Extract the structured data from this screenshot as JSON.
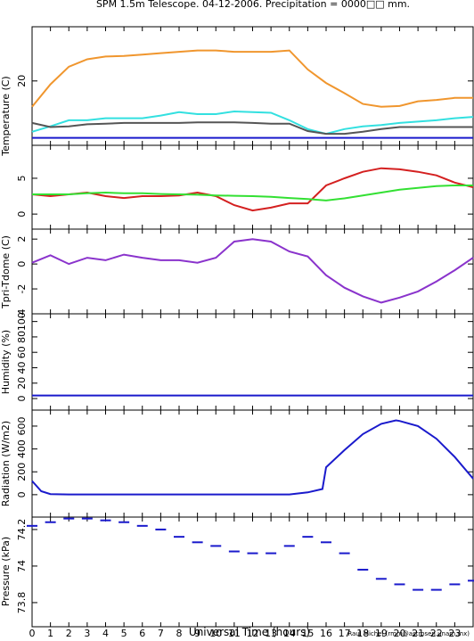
{
  "chart_data": [
    {
      "type": "line",
      "title": "SPM 1.5m Telescope. 04-12-2006. Precipitation = 0000□□ mm.",
      "ylabel": "Temperature (C)",
      "x": [
        0,
        1,
        2,
        3,
        4,
        5,
        6,
        7,
        8,
        9,
        10,
        11,
        12,
        13,
        14,
        15,
        16,
        17,
        18,
        19,
        20,
        21,
        22,
        23,
        24
      ],
      "xlim": [
        0,
        24
      ],
      "xticks": [
        0,
        1,
        2,
        3,
        4,
        5,
        6,
        7,
        8,
        9,
        10,
        11,
        12,
        13,
        14,
        15,
        16,
        17,
        18,
        19,
        20,
        21,
        22,
        23
      ],
      "ylim": [
        10.5,
        28
      ],
      "yticks": [
        20
      ],
      "series": [
        {
          "color": "#f0962e",
          "values": [
            16.2,
            19.5,
            22.1,
            23.2,
            23.6,
            23.7,
            23.9,
            24.1,
            24.3,
            24.5,
            24.5,
            24.3,
            24.3,
            24.3,
            24.5,
            21.7,
            19.7,
            18.2,
            16.6,
            16.2,
            16.3,
            17,
            17.2,
            17.5,
            17.5
          ]
        },
        {
          "color": "#33e0e0",
          "values": [
            12.5,
            13.3,
            14.2,
            14.2,
            14.5,
            14.5,
            14.5,
            14.9,
            15.4,
            15.1,
            15.1,
            15.5,
            15.4,
            15.3,
            14.2,
            12.9,
            12.2,
            12.9,
            13.3,
            13.5,
            13.8,
            14,
            14.2,
            14.5,
            14.7
          ]
        },
        {
          "color": "#555555",
          "values": [
            13.8,
            13.2,
            13.3,
            13.6,
            13.7,
            13.8,
            13.8,
            13.8,
            13.8,
            13.9,
            13.9,
            13.9,
            13.8,
            13.7,
            13.7,
            12.6,
            12.2,
            12.2,
            12.5,
            12.9,
            13.2,
            13.2,
            13.2,
            13.2,
            13.2
          ]
        },
        {
          "color": "#1a1acc",
          "values": [
            11.6,
            11.6,
            11.6,
            11.6,
            11.6,
            11.6,
            11.6,
            11.6,
            11.6,
            11.6,
            11.6,
            11.6,
            11.6,
            11.6,
            11.6,
            11.6,
            11.6,
            11.6,
            11.6,
            11.6,
            11.6,
            11.6,
            11.6,
            11.6,
            11.6
          ]
        }
      ]
    },
    {
      "type": "line",
      "x": [
        0,
        1,
        2,
        3,
        4,
        5,
        6,
        7,
        8,
        9,
        10,
        11,
        12,
        13,
        14,
        15,
        16,
        17,
        18,
        19,
        20,
        21,
        22,
        23,
        24
      ],
      "xlim": [
        0,
        24
      ],
      "xticks": [
        0,
        1,
        2,
        3,
        4,
        5,
        6,
        7,
        8,
        9,
        10,
        11,
        12,
        13,
        14,
        15,
        16,
        17,
        18,
        19,
        20,
        21,
        22,
        23
      ],
      "ylim": [
        -2.1,
        9.6
      ],
      "yticks": [
        0,
        5
      ],
      "series": [
        {
          "color": "#d42020",
          "values": [
            2.75,
            2.5,
            2.75,
            3,
            2.5,
            2.25,
            2.5,
            2.5,
            2.6,
            3,
            2.5,
            1.25,
            0.5,
            0.9,
            1.5,
            1.5,
            4,
            5,
            5.9,
            6.4,
            6.25,
            5.9,
            5.4,
            4.4,
            3.75
          ]
        },
        {
          "color": "#33e033",
          "values": [
            2.75,
            2.75,
            2.75,
            2.9,
            3,
            2.9,
            2.9,
            2.8,
            2.75,
            2.7,
            2.6,
            2.55,
            2.5,
            2.4,
            2.25,
            2.1,
            1.9,
            2.2,
            2.6,
            3,
            3.4,
            3.65,
            3.9,
            4,
            4
          ]
        }
      ]
    },
    {
      "type": "line",
      "ylabel": "Tpri-Tdome (C)",
      "x": [
        0,
        1,
        2,
        3,
        4,
        5,
        6,
        7,
        8,
        9,
        10,
        11,
        12,
        13,
        14,
        15,
        16,
        17,
        18,
        19,
        20,
        21,
        22,
        23,
        24
      ],
      "xlim": [
        0,
        24
      ],
      "xticks": [
        0,
        1,
        2,
        3,
        4,
        5,
        6,
        7,
        8,
        9,
        10,
        11,
        12,
        13,
        14,
        15,
        16,
        17,
        18,
        19,
        20,
        21,
        22,
        23
      ],
      "ylim": [
        -4,
        2.8
      ],
      "yticks": [
        -4,
        -2,
        0,
        2
      ],
      "series": [
        {
          "color": "#8a33cc",
          "values": [
            0.1,
            0.7,
            0,
            0.5,
            0.3,
            0.75,
            0.5,
            0.3,
            0.3,
            0.1,
            0.5,
            1.8,
            2,
            1.8,
            1,
            0.6,
            -0.9,
            -1.9,
            -2.6,
            -3.1,
            -2.7,
            -2.2,
            -1.4,
            -0.5,
            0.5
          ]
        }
      ]
    },
    {
      "type": "line",
      "ylabel": "Humidity (%)",
      "x": [
        0,
        1,
        2,
        3,
        4,
        5,
        6,
        7,
        8,
        9,
        10,
        11,
        12,
        13,
        14,
        15,
        16,
        17,
        18,
        19,
        20,
        21,
        22,
        23,
        24
      ],
      "xlim": [
        0,
        24
      ],
      "xticks": [
        0,
        1,
        2,
        3,
        4,
        5,
        6,
        7,
        8,
        9,
        10,
        11,
        12,
        13,
        14,
        15,
        16,
        17,
        18,
        19,
        20,
        21,
        22,
        23
      ],
      "ylim": [
        -15,
        110
      ],
      "yticks": [
        0,
        20,
        40,
        60,
        80,
        100
      ],
      "series": [
        {
          "color": "#1a1acc",
          "values": [
            4,
            4,
            4,
            4,
            4,
            4,
            4,
            4,
            4,
            4,
            4,
            4,
            4,
            4,
            4,
            4,
            4,
            4,
            4,
            4,
            4,
            4,
            4,
            4,
            4
          ]
        }
      ]
    },
    {
      "type": "line",
      "ylabel": "Radiation (W/m2)",
      "x": [
        0,
        0.5,
        1,
        2,
        3,
        4,
        5,
        6,
        7,
        8,
        9,
        10,
        11,
        12,
        13,
        14,
        15,
        15.8,
        16,
        17,
        18,
        19,
        19.8,
        20,
        21,
        22,
        23,
        24
      ],
      "xlim": [
        0,
        24
      ],
      "xticks": [
        0,
        1,
        2,
        3,
        4,
        5,
        6,
        7,
        8,
        9,
        10,
        11,
        12,
        13,
        14,
        15,
        16,
        17,
        18,
        19,
        20,
        21,
        22,
        23
      ],
      "ylim": [
        -196,
        740
      ],
      "yticks": [
        0,
        200,
        400,
        600
      ],
      "series": [
        {
          "color": "#1a1acc",
          "values": [
            120,
            30,
            5,
            2,
            2,
            2,
            2,
            2,
            2,
            2,
            2,
            2,
            2,
            2,
            2,
            2,
            20,
            50,
            240,
            390,
            530,
            620,
            650,
            645,
            600,
            490,
            330,
            140
          ]
        }
      ]
    },
    {
      "type": "scatter",
      "ylabel": "Pressure (kPa)",
      "xlabel": "Universal Time (hours)",
      "credit": "Raul Michel (rmm@astrosen.unam.mx)",
      "x": [
        0,
        1,
        2,
        3,
        4,
        5,
        6,
        7,
        8,
        9,
        10,
        11,
        12,
        13,
        14,
        15,
        16,
        17,
        18,
        19,
        20,
        21,
        22,
        23,
        24
      ],
      "xlim": [
        0,
        24
      ],
      "xticks": [
        0,
        1,
        2,
        3,
        4,
        5,
        6,
        7,
        8,
        9,
        10,
        11,
        12,
        13,
        14,
        15,
        16,
        17,
        18,
        19,
        20,
        21,
        22,
        23
      ],
      "ylim": [
        73.668,
        74.268
      ],
      "yticks": [
        73.8,
        74,
        74.2
      ],
      "series": [
        {
          "color": "#1a1acc",
          "values": [
            74.22,
            74.24,
            74.26,
            74.26,
            74.25,
            74.24,
            74.22,
            74.2,
            74.16,
            74.13,
            74.11,
            74.08,
            74.07,
            74.07,
            74.11,
            74.16,
            74.13,
            74.07,
            73.98,
            73.93,
            73.9,
            73.87,
            73.87,
            73.9,
            73.92
          ]
        }
      ]
    }
  ]
}
